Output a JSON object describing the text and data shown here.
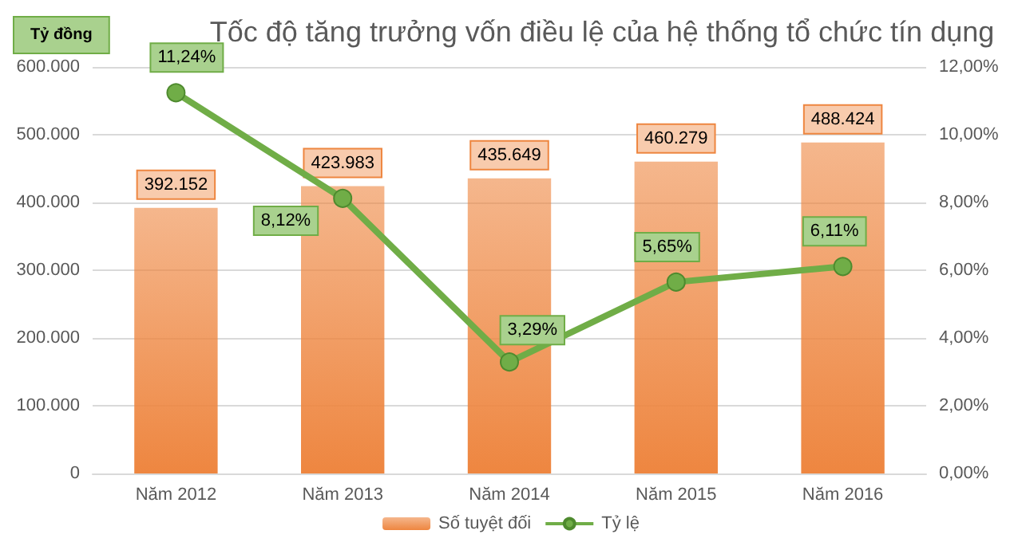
{
  "chart_data": {
    "type": "bar",
    "title": "Tốc độ tăng trưởng vốn điều lệ của hệ thống tổ chức tín dụng",
    "ylabel": "Tỷ đồng",
    "categories": [
      "Năm 2012",
      "Năm 2013",
      "Năm 2014",
      "Năm 2015",
      "Năm 2016"
    ],
    "series": [
      {
        "name": "Số tuyệt đối",
        "type": "bar",
        "color": "#ee8640",
        "values": [
          392152,
          423983,
          435649,
          460279,
          488424
        ],
        "value_labels": [
          "392.152",
          "423.983",
          "435.649",
          "460.279",
          "488.424"
        ]
      },
      {
        "name": "Tỷ lệ",
        "type": "line",
        "axis": "y2",
        "color": "#70ad47",
        "values": [
          11.24,
          8.12,
          3.29,
          5.65,
          6.11
        ],
        "value_labels": [
          "11,24%",
          "8,12%",
          "3,29%",
          "5,65%",
          "6,11%"
        ]
      }
    ],
    "ylim": [
      0,
      600000
    ],
    "yticks": [
      0,
      {
        "value": 100000,
        "label": "100.000"
      },
      {
        "value": 200000,
        "label": "200.000"
      },
      {
        "value": 300000,
        "label": "300.000"
      },
      {
        "value": 400000,
        "label": "400.000"
      },
      {
        "value": 500000,
        "label": "500.000"
      },
      {
        "value": 600000,
        "label": "600.000"
      }
    ],
    "y2lim": [
      0,
      12
    ],
    "y2ticks": [
      {
        "value": 0,
        "label": "0,00%"
      },
      {
        "value": 2,
        "label": "2,00%"
      },
      {
        "value": 4,
        "label": "4,00%"
      },
      {
        "value": 6,
        "label": "6,00%"
      },
      {
        "value": 8,
        "label": "8,00%"
      },
      {
        "value": 10,
        "label": "10,00%"
      },
      {
        "value": 12,
        "label": "12,00%"
      }
    ],
    "grid": "y",
    "legend": "bottom",
    "marker": "circle",
    "line_style": "solid"
  }
}
